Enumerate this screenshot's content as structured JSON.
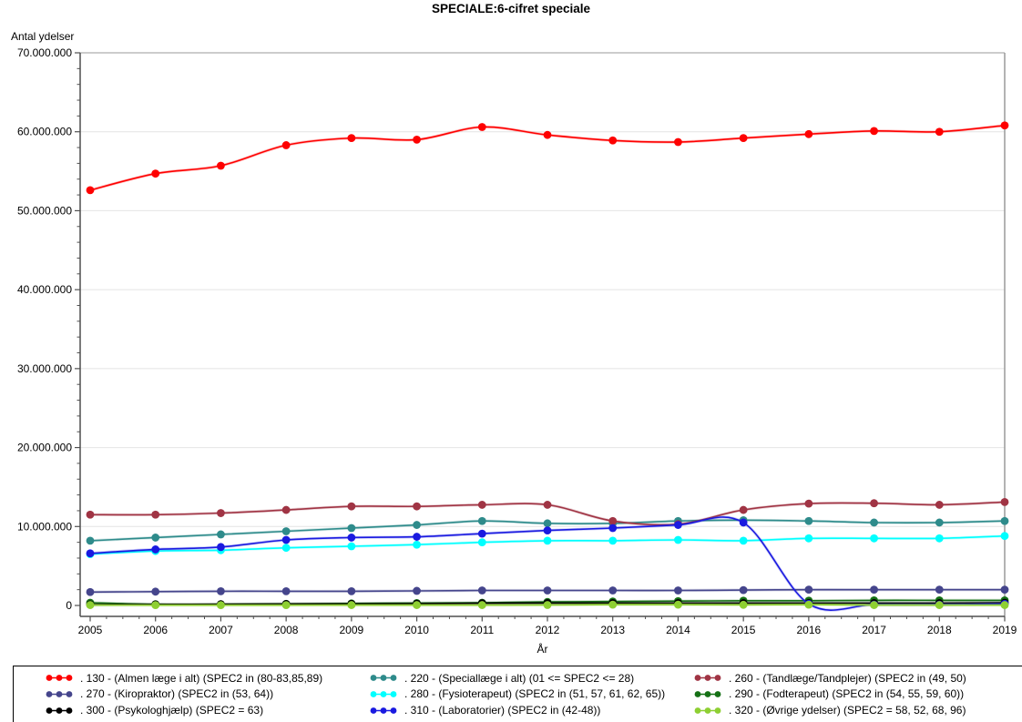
{
  "title": "SPECIALE:6-cifret speciale",
  "colors": {
    "background": "#ffffff",
    "grid": "#e4e4e4",
    "axis": "#4f4f4f",
    "frame": "#9a9a9a",
    "legend_border": "#000000"
  },
  "chart_data": {
    "type": "line",
    "title": "SPECIALE:6-cifret speciale",
    "xlabel": "År",
    "ylabel": "Antal ydelser",
    "x": [
      2005,
      2006,
      2007,
      2008,
      2009,
      2010,
      2011,
      2012,
      2013,
      2014,
      2015,
      2016,
      2017,
      2018,
      2019
    ],
    "ylim": [
      0,
      70000000
    ],
    "ytick_step": 10000000,
    "ytick_labels": [
      "0",
      "10.000.000",
      "20.000.000",
      "30.000.000",
      "40.000.000",
      "50.000.000",
      "60.000.000",
      "70.000.000"
    ],
    "grid": "horizontal",
    "legend_position": "bottom",
    "marker": "filled-circle",
    "interpolation": "smooth-spline",
    "series": [
      {
        "name": ". 130 - (Almen læge i alt) (SPEC2 in (80-83,85,89)",
        "color": "#fe0000",
        "values": [
          52600000,
          54700000,
          55700000,
          58300000,
          59200000,
          59000000,
          60600000,
          59600000,
          58900000,
          58700000,
          59200000,
          59700000,
          60100000,
          60000000,
          60800000
        ]
      },
      {
        "name": ". 220 - (Speciallæge i alt) (01 <= SPEC2 <= 28)",
        "color": "#2e8b8b",
        "values": [
          8200000,
          8600000,
          9000000,
          9400000,
          9800000,
          10200000,
          10700000,
          10400000,
          10400000,
          10700000,
          10800000,
          10700000,
          10500000,
          10500000,
          10700000
        ]
      },
      {
        "name": ". 260 - (Tandlæge/Tandplejer) (SPEC2  in (49, 50)",
        "color": "#a03444",
        "values": [
          11500000,
          11500000,
          11700000,
          12100000,
          12550000,
          12550000,
          12750000,
          12750000,
          10700000,
          10300000,
          12100000,
          12900000,
          12950000,
          12750000,
          13100000
        ]
      },
      {
        "name": ". 270 - (Kiropraktor) (SPEC2 in (53, 64))",
        "color": "#45458c",
        "values": [
          1700000,
          1750000,
          1800000,
          1800000,
          1800000,
          1850000,
          1900000,
          1900000,
          1900000,
          1900000,
          1950000,
          2000000,
          2000000,
          2000000,
          2000000
        ]
      },
      {
        "name": ". 280 - (Fysioterapeut) (SPEC2 in (51, 57, 61, 62, 65))",
        "color": "#00ffff",
        "values": [
          6500000,
          6900000,
          7000000,
          7300000,
          7500000,
          7700000,
          8000000,
          8200000,
          8200000,
          8300000,
          8200000,
          8500000,
          8500000,
          8500000,
          8800000
        ]
      },
      {
        "name": ". 290 - (Fodterapeut) (SPEC2 in (54, 55, 59, 60))",
        "color": "#157015",
        "values": [
          350000,
          150000,
          150000,
          200000,
          250000,
          300000,
          350000,
          450000,
          500000,
          550000,
          600000,
          600000,
          650000,
          650000,
          650000
        ]
      },
      {
        "name": ". 300 - (Psykologhjælp) (SPEC2 = 63)",
        "color": "#000000",
        "values": [
          120000,
          130000,
          150000,
          180000,
          200000,
          220000,
          280000,
          300000,
          300000,
          300000,
          300000,
          300000,
          300000,
          300000,
          350000
        ]
      },
      {
        "name": ". 310 - (Laboratorier) (SPEC2 in (42-48))",
        "color": "#1a1ae0",
        "values": [
          6600000,
          7100000,
          7400000,
          8300000,
          8600000,
          8700000,
          9100000,
          9500000,
          9800000,
          10200000,
          10500000,
          200000,
          100000,
          100000,
          200000
        ]
      },
      {
        "name": ". 320 - (Øvrige ydelser) (SPEC2 = 58, 52, 68, 96)",
        "color": "#8ecf32",
        "values": [
          50000,
          40000,
          40000,
          40000,
          50000,
          50000,
          50000,
          60000,
          100000,
          100000,
          80000,
          100000,
          50000,
          50000,
          50000
        ]
      }
    ]
  }
}
